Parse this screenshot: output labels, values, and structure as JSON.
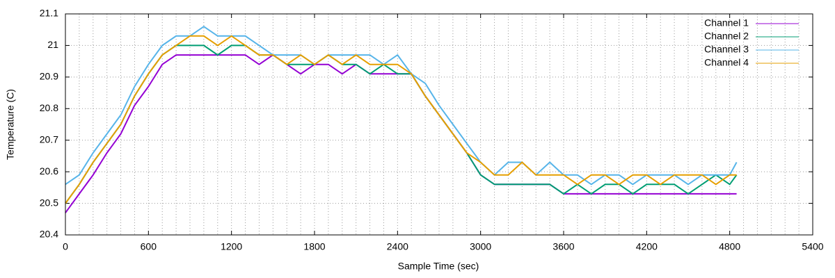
{
  "chart_data": {
    "type": "line",
    "xlabel": "Sample Time (sec)",
    "ylabel": "Temperature (C)",
    "x": [
      0,
      100,
      200,
      300,
      400,
      500,
      600,
      700,
      800,
      900,
      1000,
      1100,
      1200,
      1300,
      1400,
      1500,
      1600,
      1700,
      1800,
      1900,
      2000,
      2100,
      2200,
      2300,
      2400,
      2500,
      2600,
      2700,
      2800,
      2900,
      3000,
      3100,
      3200,
      3300,
      3400,
      3500,
      3600,
      3700,
      3800,
      3900,
      4000,
      4100,
      4200,
      4300,
      4400,
      4500,
      4600,
      4700,
      4800,
      4850
    ],
    "series": [
      {
        "name": "Channel 1",
        "color": "#9400d3",
        "values": [
          20.47,
          20.53,
          20.59,
          20.66,
          20.72,
          20.81,
          20.87,
          20.94,
          20.97,
          20.97,
          20.97,
          20.97,
          20.97,
          20.97,
          20.94,
          20.97,
          20.94,
          20.91,
          20.94,
          20.94,
          20.91,
          20.94,
          20.91,
          20.91,
          20.91,
          20.91,
          20.84,
          20.78,
          20.72,
          20.66,
          20.59,
          20.56,
          20.56,
          20.56,
          20.56,
          20.56,
          20.53,
          20.53,
          20.53,
          20.53,
          20.53,
          20.53,
          20.53,
          20.53,
          20.53,
          20.53,
          20.53,
          20.53,
          20.53,
          20.53
        ]
      },
      {
        "name": "Channel 2",
        "color": "#009e73",
        "values": [
          20.5,
          20.56,
          20.63,
          20.69,
          20.75,
          20.84,
          20.91,
          20.97,
          21.0,
          21.0,
          21.0,
          20.97,
          21.0,
          21.0,
          20.97,
          20.97,
          20.94,
          20.94,
          20.94,
          20.97,
          20.94,
          20.94,
          20.91,
          20.94,
          20.91,
          20.91,
          20.84,
          20.78,
          20.72,
          20.66,
          20.59,
          20.56,
          20.56,
          20.56,
          20.56,
          20.56,
          20.53,
          20.56,
          20.53,
          20.56,
          20.56,
          20.53,
          20.56,
          20.56,
          20.56,
          20.53,
          20.56,
          20.59,
          20.56,
          20.59
        ]
      },
      {
        "name": "Channel 3",
        "color": "#56b4e9",
        "values": [
          20.56,
          20.59,
          20.66,
          20.72,
          20.78,
          20.87,
          20.94,
          21.0,
          21.03,
          21.03,
          21.06,
          21.03,
          21.03,
          21.03,
          21.0,
          20.97,
          20.97,
          20.97,
          20.94,
          20.97,
          20.97,
          20.97,
          20.97,
          20.94,
          20.97,
          20.91,
          20.88,
          20.81,
          20.75,
          20.69,
          20.63,
          20.59,
          20.63,
          20.63,
          20.59,
          20.63,
          20.59,
          20.59,
          20.56,
          20.59,
          20.59,
          20.56,
          20.59,
          20.59,
          20.59,
          20.56,
          20.59,
          20.59,
          20.59,
          20.63
        ]
      },
      {
        "name": "Channel 4",
        "color": "#e69f00",
        "values": [
          20.5,
          20.56,
          20.63,
          20.69,
          20.75,
          20.84,
          20.91,
          20.97,
          21.0,
          21.03,
          21.03,
          21.0,
          21.03,
          21.0,
          20.97,
          20.97,
          20.94,
          20.97,
          20.94,
          20.97,
          20.94,
          20.97,
          20.94,
          20.94,
          20.94,
          20.91,
          20.84,
          20.78,
          20.72,
          20.66,
          20.63,
          20.59,
          20.59,
          20.63,
          20.59,
          20.59,
          20.59,
          20.56,
          20.59,
          20.59,
          20.56,
          20.59,
          20.59,
          20.56,
          20.59,
          20.59,
          20.59,
          20.56,
          20.59,
          20.59
        ]
      }
    ],
    "xlim": [
      0,
      5400
    ],
    "xticks": [
      0,
      600,
      1200,
      1800,
      2400,
      3000,
      3600,
      4200,
      4800,
      5400
    ],
    "ylim": [
      20.4,
      21.1
    ],
    "yticks": [
      20.4,
      20.5,
      20.6,
      20.7,
      20.8,
      20.9,
      21,
      21.1
    ],
    "grid": true,
    "legend": "top-right"
  }
}
